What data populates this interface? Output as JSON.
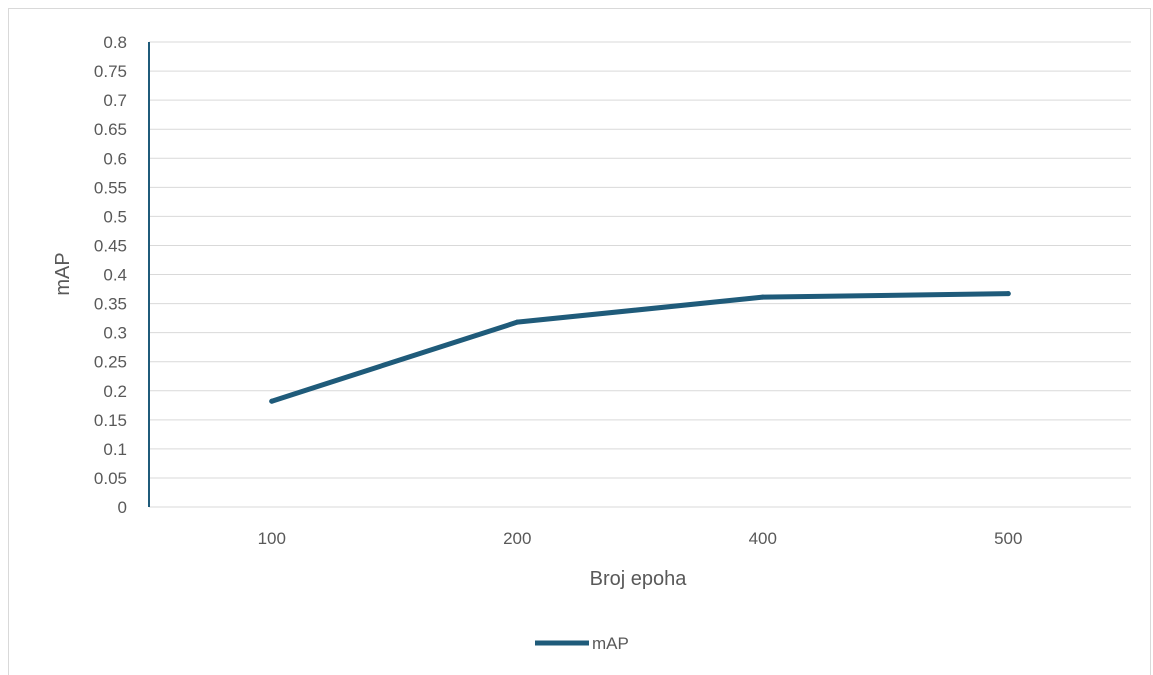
{
  "chart_data": {
    "type": "line",
    "title": "",
    "xlabel": "Broj epoha",
    "ylabel": "mAP",
    "categories": [
      "100",
      "200",
      "400",
      "500"
    ],
    "series": [
      {
        "name": "mAP",
        "values": [
          0.182,
          0.318,
          0.361,
          0.367
        ],
        "color": "#1f5b7a"
      }
    ],
    "yticks": [
      "0",
      "0.05",
      "0.1",
      "0.15",
      "0.2",
      "0.25",
      "0.3",
      "0.35",
      "0.4",
      "0.45",
      "0.5",
      "0.55",
      "0.6",
      "0.65",
      "0.7",
      "0.75",
      "0.8"
    ],
    "ylim": [
      0,
      0.8
    ],
    "grid": true,
    "legend_position": "bottom",
    "axis_color": "#1f5b7a",
    "grid_color": "#d9d9d9"
  }
}
